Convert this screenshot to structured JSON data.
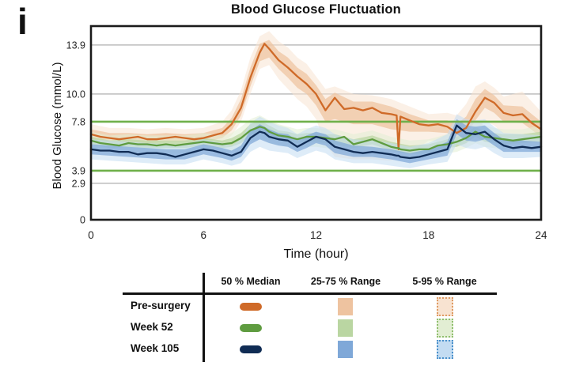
{
  "panel_label": "i",
  "chart_data": {
    "type": "line",
    "title": "Blood Glucose Fluctuation",
    "xlabel": "Time (hour)",
    "ylabel": "Blood Glucose (mmol/L)",
    "xlim": [
      0,
      24
    ],
    "ylim": [
      0,
      15.4
    ],
    "x_ticks": [
      0,
      6,
      12,
      18,
      24
    ],
    "y_ticks": [
      {
        "v": 13.9,
        "label": "13.9"
      },
      {
        "v": 10.0,
        "label": "10.0"
      },
      {
        "v": 7.8,
        "label": "7.8"
      },
      {
        "v": 3.9,
        "label": "3.9"
      },
      {
        "v": 2.9,
        "label": "2.9"
      },
      {
        "v": 0,
        "label": "0"
      }
    ],
    "y_gridlines": [
      13.9,
      10.0,
      2.9
    ],
    "grid_color": "#c6c6c6",
    "target_lines": {
      "values": [
        7.8,
        3.9
      ],
      "color": "#6fb04a"
    },
    "t": [
      0,
      0.5,
      1,
      1.5,
      2,
      2.5,
      3,
      3.5,
      4,
      4.5,
      5,
      5.5,
      6,
      6.5,
      7,
      7.5,
      8,
      8.5,
      9,
      9.25,
      9.5,
      10,
      10.5,
      11,
      11.5,
      12,
      12.5,
      13,
      13.5,
      14,
      14.5,
      15,
      15.5,
      16,
      16.3,
      16.4,
      16.5,
      17,
      17.5,
      18,
      18.5,
      19,
      19.5,
      20,
      20.5,
      21,
      21.5,
      22,
      22.5,
      23,
      23.5,
      24
    ],
    "band_t": [
      0,
      1,
      2,
      3,
      4,
      5,
      6,
      7,
      7.5,
      8,
      8.5,
      9,
      9.5,
      10,
      10.5,
      11,
      11.5,
      12,
      12.5,
      13,
      14,
      15,
      16,
      17,
      18,
      19,
      19.5,
      20,
      20.5,
      21,
      21.5,
      22,
      23,
      24
    ],
    "series": [
      {
        "name": "Pre-surgery",
        "color": "#cf6a28",
        "band25_color": "#eec3a0",
        "band5_color": "#f8e3d1",
        "band5_border": "#df9b64",
        "median": [
          6.8,
          6.6,
          6.5,
          6.4,
          6.5,
          6.6,
          6.4,
          6.4,
          6.5,
          6.6,
          6.5,
          6.4,
          6.5,
          6.7,
          6.9,
          7.6,
          8.9,
          11.3,
          13.3,
          14.0,
          13.6,
          12.7,
          12.1,
          11.4,
          10.8,
          10.0,
          8.7,
          9.7,
          8.8,
          8.9,
          8.7,
          8.9,
          8.5,
          8.4,
          8.3,
          5.6,
          8.2,
          7.9,
          7.6,
          7.5,
          7.6,
          7.4,
          6.9,
          7.3,
          8.6,
          9.7,
          9.3,
          8.5,
          8.3,
          8.4,
          7.7,
          7.2
        ],
        "p25": [
          6.4,
          6.2,
          6.2,
          6.1,
          6.2,
          6.2,
          6.2,
          6.5,
          7.1,
          8.3,
          10.6,
          12.6,
          12.9,
          12.0,
          11.3,
          10.5,
          10.0,
          9.1,
          7.8,
          8.0,
          7.6,
          7.6,
          7.2,
          7.0,
          7.0,
          6.9,
          6.4,
          6.7,
          7.9,
          8.9,
          8.5,
          7.8,
          7.7,
          6.6
        ],
        "p75": [
          7.2,
          6.9,
          6.9,
          6.8,
          6.9,
          6.8,
          6.9,
          7.3,
          8.1,
          9.6,
          12.1,
          14.0,
          14.3,
          13.4,
          12.9,
          12.1,
          11.6,
          10.7,
          9.6,
          10.1,
          9.4,
          9.4,
          9.0,
          8.4,
          7.9,
          7.9,
          7.6,
          8.2,
          9.6,
          10.4,
          9.9,
          9.1,
          9.0,
          7.8
        ],
        "p5": [
          6.0,
          5.9,
          5.9,
          5.8,
          5.9,
          5.9,
          5.9,
          6.1,
          6.7,
          7.8,
          10.0,
          12.0,
          12.3,
          11.2,
          10.4,
          9.6,
          9.0,
          8.0,
          6.0,
          5.0,
          4.8,
          4.8,
          4.7,
          5.2,
          6.3,
          6.2,
          5.8,
          6.0,
          7.0,
          7.9,
          7.5,
          6.8,
          6.6,
          5.9
        ],
        "p95": [
          7.6,
          7.3,
          7.3,
          7.2,
          7.3,
          7.2,
          7.3,
          7.8,
          8.7,
          10.3,
          12.9,
          14.6,
          15.0,
          14.2,
          13.7,
          12.9,
          12.4,
          11.4,
          10.4,
          10.6,
          10.0,
          9.9,
          9.6,
          9.0,
          8.4,
          8.5,
          8.3,
          9.2,
          10.6,
          11.0,
          10.5,
          9.8,
          10.2,
          8.6
        ]
      },
      {
        "name": "Week 52",
        "color": "#5f9c40",
        "band25_color": "#bad6a2",
        "band5_color": "#e2eed3",
        "band5_border": "#90bf6e",
        "median": [
          6.3,
          6.1,
          6.0,
          5.9,
          6.1,
          6.0,
          6.0,
          5.9,
          6.0,
          5.9,
          6.0,
          6.1,
          6.2,
          6.1,
          6.0,
          6.1,
          6.5,
          7.1,
          7.4,
          7.3,
          7.0,
          6.7,
          6.6,
          6.4,
          6.6,
          6.6,
          6.5,
          6.4,
          6.6,
          6.0,
          6.2,
          6.4,
          6.1,
          5.8,
          5.7,
          5.7,
          5.6,
          5.5,
          5.6,
          5.6,
          5.9,
          6.0,
          6.2,
          6.5,
          7.0,
          6.6,
          6.5,
          6.4,
          6.3,
          6.4,
          6.5,
          6.6
        ],
        "p25": [
          6.0,
          5.7,
          5.8,
          5.7,
          5.7,
          5.7,
          5.9,
          5.7,
          5.8,
          6.1,
          6.7,
          7.0,
          6.6,
          6.3,
          6.2,
          6.1,
          6.2,
          6.2,
          6.1,
          6.0,
          5.7,
          6.0,
          5.5,
          5.2,
          5.3,
          5.7,
          5.8,
          6.1,
          6.6,
          6.2,
          6.1,
          6.0,
          6.1,
          6.2
        ],
        "p75": [
          6.6,
          6.3,
          6.4,
          6.3,
          6.3,
          6.3,
          6.5,
          6.3,
          6.5,
          6.9,
          7.6,
          7.9,
          7.5,
          7.1,
          7.0,
          6.8,
          6.9,
          6.9,
          6.8,
          6.8,
          6.4,
          6.7,
          6.2,
          5.9,
          6.0,
          6.4,
          6.6,
          6.9,
          7.4,
          7.0,
          6.9,
          6.8,
          6.8,
          7.0
        ],
        "p5": [
          5.6,
          5.3,
          5.4,
          5.3,
          5.3,
          5.3,
          5.5,
          5.3,
          5.4,
          5.7,
          6.2,
          6.5,
          6.1,
          5.9,
          5.8,
          5.7,
          5.8,
          5.8,
          5.7,
          5.6,
          5.3,
          5.6,
          5.1,
          4.9,
          5.0,
          5.3,
          5.4,
          5.7,
          6.1,
          5.8,
          5.7,
          5.6,
          5.7,
          5.8
        ],
        "p95": [
          7.0,
          6.7,
          6.8,
          6.7,
          6.7,
          6.7,
          6.9,
          6.7,
          6.9,
          7.4,
          8.0,
          8.3,
          7.9,
          7.6,
          7.4,
          7.2,
          7.3,
          7.3,
          7.2,
          7.2,
          6.8,
          7.1,
          6.6,
          6.3,
          6.4,
          6.8,
          7.0,
          7.4,
          7.9,
          7.5,
          7.3,
          7.2,
          7.2,
          7.5
        ]
      },
      {
        "name": "Week 105",
        "color": "#102c54",
        "band25_color": "#7fa8d8",
        "band5_color": "#c3dcf2",
        "band5_border": "#4a90cb",
        "median": [
          5.6,
          5.5,
          5.5,
          5.4,
          5.4,
          5.2,
          5.3,
          5.3,
          5.2,
          5.0,
          5.2,
          5.4,
          5.6,
          5.5,
          5.3,
          5.1,
          5.4,
          6.5,
          7.0,
          6.9,
          6.6,
          6.4,
          6.3,
          5.8,
          6.2,
          6.6,
          6.4,
          5.8,
          5.6,
          5.4,
          5.3,
          5.4,
          5.3,
          5.2,
          5.1,
          5.1,
          5.0,
          4.9,
          5.0,
          5.2,
          5.4,
          5.6,
          7.5,
          6.9,
          6.8,
          7.0,
          6.4,
          5.9,
          5.7,
          5.8,
          5.7,
          5.8
        ],
        "p25": [
          5.2,
          5.1,
          5.0,
          4.9,
          4.8,
          4.8,
          5.2,
          4.9,
          4.7,
          5.0,
          6.0,
          6.4,
          6.1,
          5.9,
          5.8,
          5.4,
          5.7,
          6.1,
          5.9,
          5.3,
          5.0,
          5.0,
          4.8,
          4.5,
          4.8,
          5.1,
          6.8,
          6.3,
          6.2,
          6.4,
          5.9,
          5.4,
          5.4,
          5.4
        ],
        "p75": [
          6.0,
          5.9,
          5.8,
          5.7,
          5.6,
          5.6,
          6.0,
          5.7,
          5.5,
          5.9,
          7.1,
          7.6,
          7.2,
          6.9,
          6.8,
          6.3,
          6.7,
          7.0,
          6.8,
          6.3,
          5.9,
          5.8,
          5.6,
          5.3,
          5.6,
          6.2,
          8.0,
          7.5,
          7.4,
          7.5,
          6.9,
          6.4,
          6.3,
          6.2
        ],
        "p5": [
          4.8,
          4.7,
          4.6,
          4.5,
          4.4,
          4.4,
          4.8,
          4.5,
          4.3,
          4.5,
          5.4,
          5.8,
          5.5,
          5.4,
          5.3,
          4.9,
          5.2,
          5.5,
          5.3,
          4.8,
          4.5,
          4.5,
          4.3,
          4.1,
          4.4,
          4.6,
          6.0,
          5.7,
          5.6,
          5.8,
          5.3,
          4.9,
          4.9,
          5.0
        ],
        "p95": [
          6.4,
          6.3,
          6.2,
          6.1,
          6.0,
          6.0,
          6.4,
          6.1,
          5.9,
          6.4,
          7.7,
          8.2,
          7.8,
          7.5,
          7.3,
          6.8,
          7.2,
          7.5,
          7.3,
          6.8,
          6.4,
          6.3,
          6.1,
          5.8,
          6.1,
          6.8,
          8.4,
          8.0,
          7.9,
          8.0,
          7.4,
          6.9,
          6.8,
          6.7
        ]
      }
    ]
  },
  "legend": {
    "columns": [
      "50 % Median",
      "25-75 % Range",
      "5-95 % Range"
    ]
  }
}
